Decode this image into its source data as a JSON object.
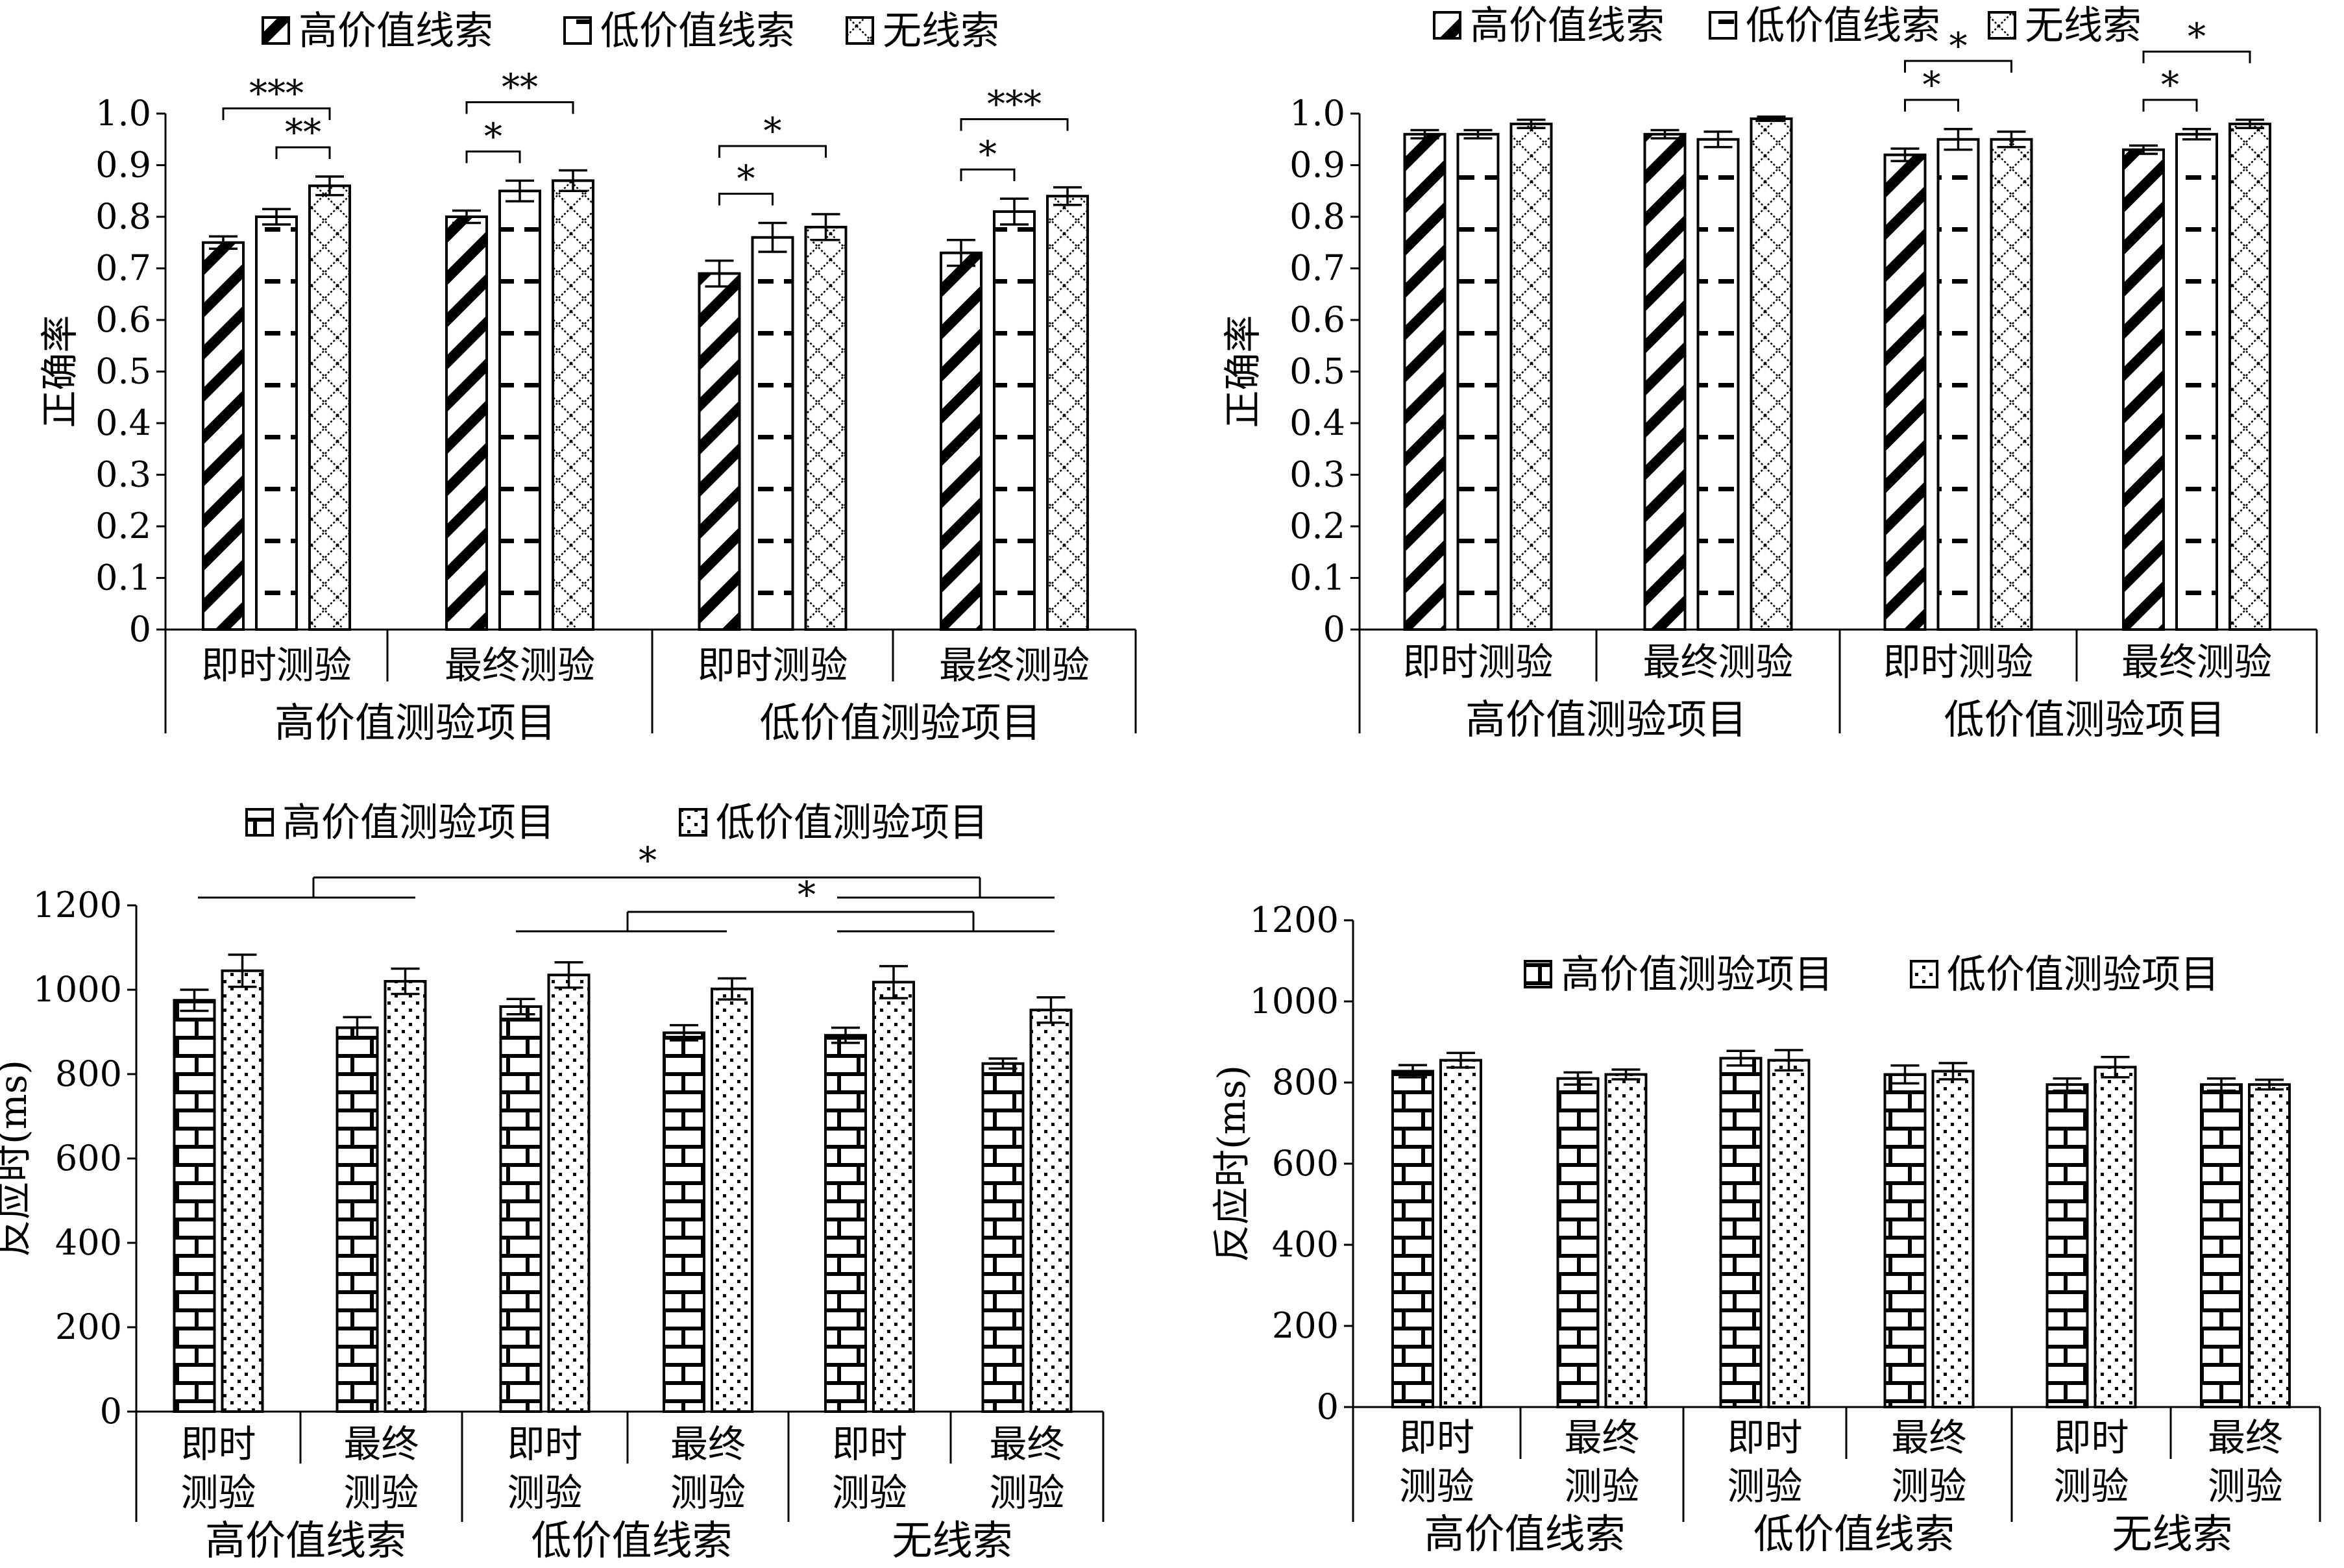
{
  "chart_data": [
    {
      "type": "bar",
      "ylabel": "正确率",
      "ylim": [
        0,
        1.0
      ],
      "yticks": [
        "0",
        "0.1",
        "0.2",
        "0.3",
        "0.4",
        "0.5",
        "0.6",
        "0.7",
        "0.8",
        "0.9",
        "1.0"
      ],
      "ytick_values": [
        0,
        0.1,
        0.2,
        0.3,
        0.4,
        0.5,
        0.6,
        0.7,
        0.8,
        0.9,
        1.0
      ],
      "categories": [
        "即时测验",
        "最终测验",
        "即时测验",
        "最终测验"
      ],
      "groups": [
        "高价值测验项目",
        "低价值测验项目"
      ],
      "series": [
        {
          "name": "高价值线索",
          "pattern": "diag",
          "values": [
            0.75,
            0.8,
            0.69,
            0.73
          ],
          "errors": [
            0.012,
            0.012,
            0.025,
            0.025
          ]
        },
        {
          "name": "低价值线索",
          "pattern": "dash",
          "values": [
            0.8,
            0.85,
            0.76,
            0.81
          ],
          "errors": [
            0.015,
            0.02,
            0.028,
            0.025
          ]
        },
        {
          "name": "无线索",
          "pattern": "cross",
          "values": [
            0.86,
            0.87,
            0.78,
            0.84
          ],
          "errors": [
            0.018,
            0.02,
            0.025,
            0.017
          ]
        }
      ],
      "significance": [
        {
          "category": 0,
          "from": 0,
          "to": 2,
          "label": "***",
          "level": 2
        },
        {
          "category": 0,
          "from": 1,
          "to": 2,
          "label": "**",
          "level": 1
        },
        {
          "category": 1,
          "from": 0,
          "to": 2,
          "label": "**",
          "level": 2
        },
        {
          "category": 1,
          "from": 0,
          "to": 1,
          "label": "*",
          "level": 1
        },
        {
          "category": 2,
          "from": 0,
          "to": 2,
          "label": "*",
          "level": 2
        },
        {
          "category": 2,
          "from": 0,
          "to": 1,
          "label": "*",
          "level": 1
        },
        {
          "category": 3,
          "from": 0,
          "to": 2,
          "label": "***",
          "level": 2
        },
        {
          "category": 3,
          "from": 0,
          "to": 1,
          "label": "*",
          "level": 1
        }
      ],
      "legend": "top"
    },
    {
      "type": "bar",
      "ylabel": "正确率",
      "ylim": [
        0,
        1.0
      ],
      "yticks": [
        "0",
        "0.1",
        "0.2",
        "0.3",
        "0.4",
        "0.5",
        "0.6",
        "0.7",
        "0.8",
        "0.9",
        "1.0"
      ],
      "ytick_values": [
        0,
        0.1,
        0.2,
        0.3,
        0.4,
        0.5,
        0.6,
        0.7,
        0.8,
        0.9,
        1.0
      ],
      "categories": [
        "即时测验",
        "最终测验",
        "即时测验",
        "最终测验"
      ],
      "groups": [
        "高价值测验项目",
        "低价值测验项目"
      ],
      "series": [
        {
          "name": "高价值线索",
          "pattern": "diag",
          "values": [
            0.96,
            0.96,
            0.92,
            0.93
          ],
          "errors": [
            0.008,
            0.008,
            0.012,
            0.008
          ]
        },
        {
          "name": "低价值线索",
          "pattern": "dash",
          "values": [
            0.96,
            0.95,
            0.95,
            0.96
          ],
          "errors": [
            0.008,
            0.015,
            0.02,
            0.01
          ]
        },
        {
          "name": "无线索",
          "pattern": "cross",
          "values": [
            0.98,
            0.99,
            0.95,
            0.98
          ],
          "errors": [
            0.008,
            0.004,
            0.015,
            0.008
          ]
        }
      ],
      "significance": [
        {
          "category": 2,
          "from": 0,
          "to": 2,
          "label": "*",
          "level": 2
        },
        {
          "category": 2,
          "from": 0,
          "to": 1,
          "label": "*",
          "level": 1
        },
        {
          "category": 3,
          "from": 0,
          "to": 2,
          "label": "*",
          "level": 2
        },
        {
          "category": 3,
          "from": 0,
          "to": 1,
          "label": "*",
          "level": 1
        }
      ],
      "legend": "top"
    },
    {
      "type": "bar",
      "ylabel": "反应时(ms)",
      "ylim": [
        0,
        1200
      ],
      "yticks": [
        "0",
        "200",
        "400",
        "600",
        "800",
        "1000",
        "1200"
      ],
      "ytick_values": [
        0,
        200,
        400,
        600,
        800,
        1000,
        1200
      ],
      "categories": [
        "即时\n测验",
        "最终\n测验",
        "即时\n测验",
        "最终\n测验",
        "即时\n测验",
        "最终\n测验"
      ],
      "groups": [
        "高价值线索",
        "低价值线索",
        "无线索"
      ],
      "series": [
        {
          "name": "高价值测验项目",
          "pattern": "brick",
          "values": [
            975,
            910,
            960,
            898,
            892,
            825
          ],
          "errors": [
            25,
            25,
            18,
            18,
            18,
            12
          ]
        },
        {
          "name": "低价值测验项目",
          "pattern": "dots",
          "values": [
            1045,
            1020,
            1035,
            1002,
            1018,
            952
          ],
          "errors": [
            38,
            30,
            30,
            25,
            38,
            30
          ]
        }
      ],
      "significance_label": "*",
      "legend": "top"
    },
    {
      "type": "bar",
      "ylabel": "反应时(ms)",
      "ylim": [
        0,
        1200
      ],
      "yticks": [
        "0",
        "200",
        "400",
        "600",
        "800",
        "1000",
        "1200"
      ],
      "ytick_values": [
        0,
        200,
        400,
        600,
        800,
        1000,
        1200
      ],
      "categories": [
        "即时\n测验",
        "最终\n测验",
        "即时\n测验",
        "最终\n测验",
        "即时\n测验",
        "最终\n测验"
      ],
      "groups": [
        "高价值线索",
        "低价值线索",
        "无线索"
      ],
      "series": [
        {
          "name": "高价值测验项目",
          "pattern": "brick",
          "values": [
            828,
            810,
            860,
            820,
            795,
            795
          ],
          "errors": [
            15,
            15,
            18,
            22,
            15,
            15
          ]
        },
        {
          "name": "低价值测验项目",
          "pattern": "dots",
          "values": [
            855,
            820,
            855,
            828,
            838,
            795
          ],
          "errors": [
            18,
            12,
            25,
            20,
            25,
            12
          ]
        }
      ],
      "legend": "upper-center"
    }
  ]
}
